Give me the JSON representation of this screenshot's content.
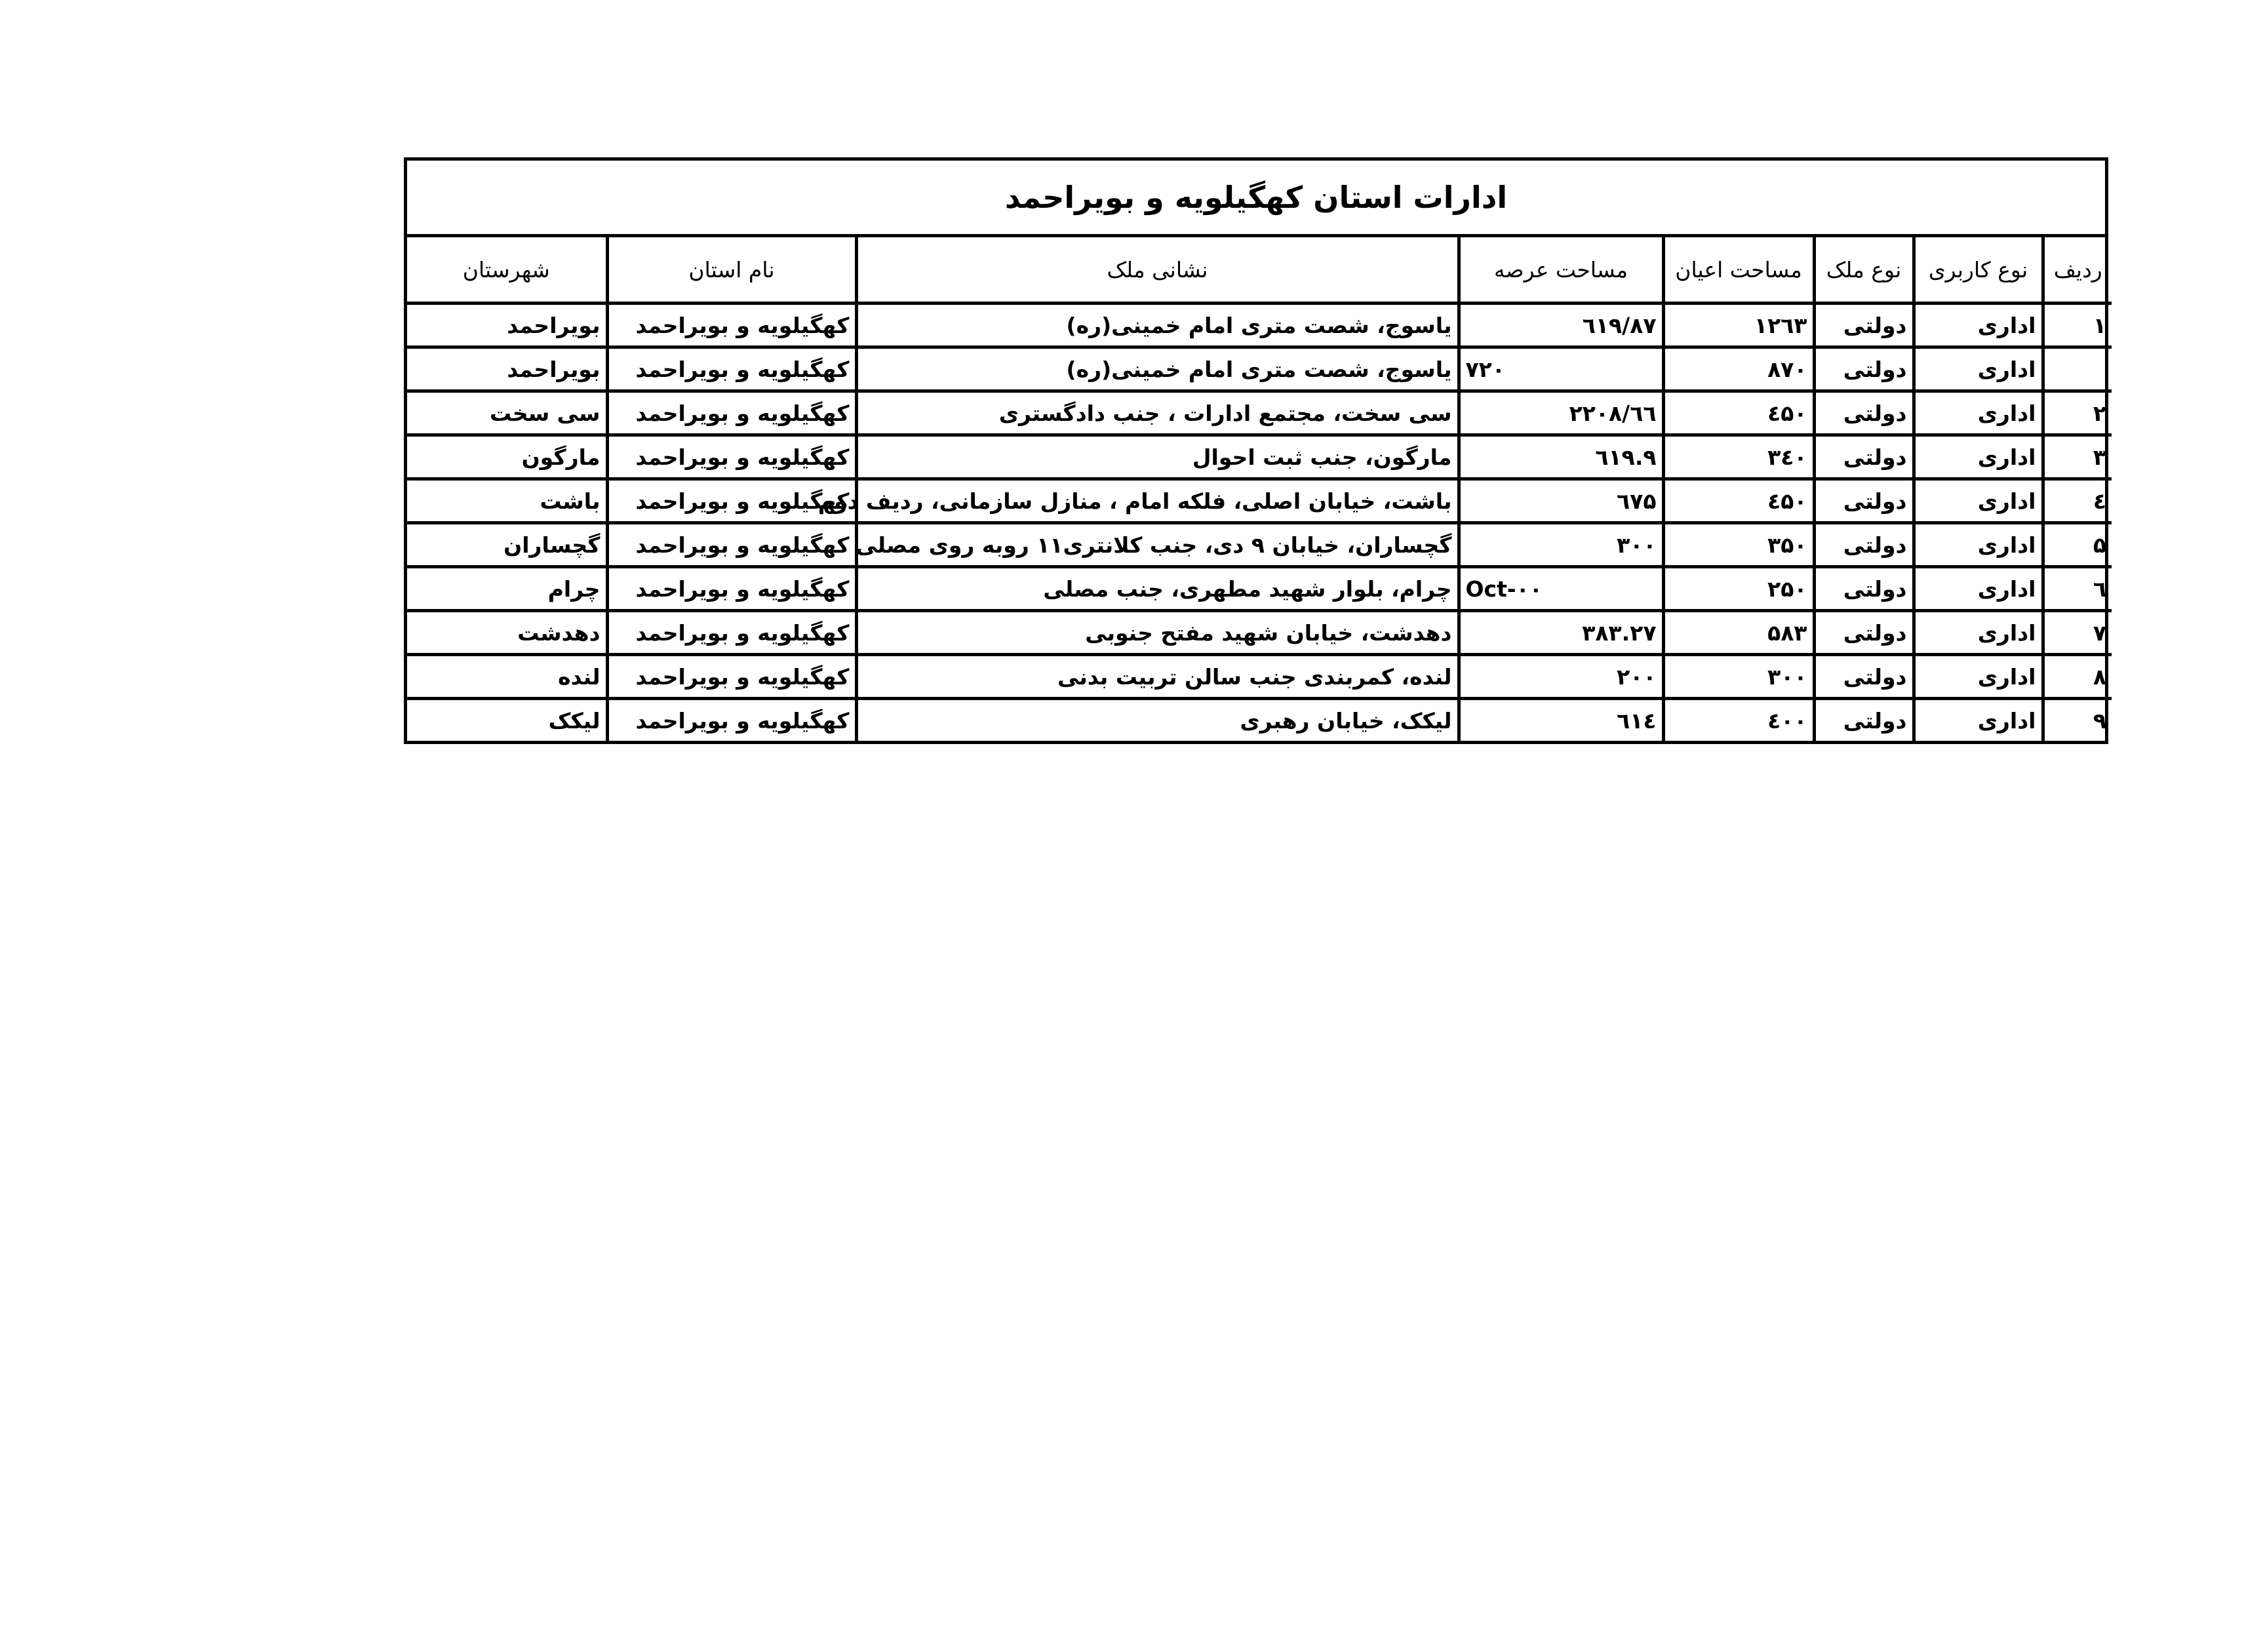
{
  "title": "ادارات استان کهگیلویه و بویراحمد",
  "headers": [
    "ردیف",
    "نوع کاربری",
    "نوع ملک",
    "مساحت اعیان",
    "مساحت عرصه",
    "نشانی ملک",
    "نام استان",
    "شهرستان"
  ],
  "rows": [
    {
      "radif": "۱",
      "karbari": "اداری",
      "melk": "دولتی",
      "ayan": "۱۲٦۳",
      "arse": "۸۷/٦۱۹",
      "arse_align": "right",
      "address": "یاسوج، شصت متری امام خمینی(ره)",
      "ostan": "کهگیلویه و بویراحمد",
      "shahrestan": "بویراحمد"
    },
    {
      "radif": "",
      "karbari": "اداری",
      "melk": "دولتی",
      "ayan": "۸۷۰",
      "arse": "۷۲۰",
      "arse_align": "left",
      "address": "یاسوج، شصت متری امام خمینی(ره)",
      "ostan": "کهگیلویه و بویراحمد",
      "shahrestan": "بویراحمد"
    },
    {
      "radif": "۲",
      "karbari": "اداری",
      "melk": "دولتی",
      "ayan": "٤۵۰",
      "arse": "٦٦/۲۲۰۸",
      "arse_align": "right",
      "address": "سی سخت، مجتمع ادارات ، جنب دادگستری",
      "ostan": "کهگیلویه و بویراحمد",
      "shahrestan": "سی سخت"
    },
    {
      "radif": "۳",
      "karbari": "اداری",
      "melk": "دولتی",
      "ayan": "۳٤۰",
      "arse": "٦۱۹.۹",
      "arse_align": "right",
      "address": "مارگون، جنب ثبت احوال",
      "ostan": "کهگیلویه و بویراحمد",
      "shahrestan": "مارگون"
    },
    {
      "radif": "٤",
      "karbari": "اداری",
      "melk": "دولتی",
      "ayan": "٤۵۰",
      "arse": "٦۷۵",
      "arse_align": "right",
      "address": "باشت، خیابان اصلی، فلکه امام ، منازل سازمانی، ردیف دوم",
      "ostan": "کهگیلویه و بویراحمد",
      "shahrestan": "باشت"
    },
    {
      "radif": "۵",
      "karbari": "اداری",
      "melk": "دولتی",
      "ayan": "۳۵۰",
      "arse": "۳۰۰",
      "arse_align": "right",
      "address": "گچساران، خیابان ۹ دی، جنب کلانتری۱۱ روبه روی مصلی",
      "ostan": "کهگیلویه و بویراحمد",
      "shahrestan": "گچساران"
    },
    {
      "radif": "٦",
      "karbari": "اداری",
      "melk": "دولتی",
      "ayan": "۲۵۰",
      "arse": "Oct-۰۰",
      "arse_align": "left",
      "address": "چرام، بلوار شهید مطهری، جنب مصلی",
      "ostan": "کهگیلویه و بویراحمد",
      "shahrestan": "چرام"
    },
    {
      "radif": "۷",
      "karbari": "اداری",
      "melk": "دولتی",
      "ayan": "۵۸۳",
      "arse": "۳۸۳.۲۷",
      "arse_align": "right",
      "address": "دهدشت، خیابان شهید مفتح جنوبی",
      "ostan": "کهگیلویه و بویراحمد",
      "shahrestan": "دهدشت"
    },
    {
      "radif": "۸",
      "karbari": "اداری",
      "melk": "دولتی",
      "ayan": "۳۰۰",
      "arse": "۲۰۰",
      "arse_align": "right",
      "address": "لنده، کمربندی جنب سالن تربیت بدنی",
      "ostan": "کهگیلویه و بویراحمد",
      "shahrestan": "لنده"
    },
    {
      "radif": "۹",
      "karbari": "اداری",
      "melk": "دولتی",
      "ayan": "٤۰۰",
      "arse": "٦۱٤",
      "arse_align": "right",
      "address": "لیکک، خیابان رهبری",
      "ostan": "کهگیلویه و بویراحمد",
      "shahrestan": "لیکک"
    }
  ]
}
